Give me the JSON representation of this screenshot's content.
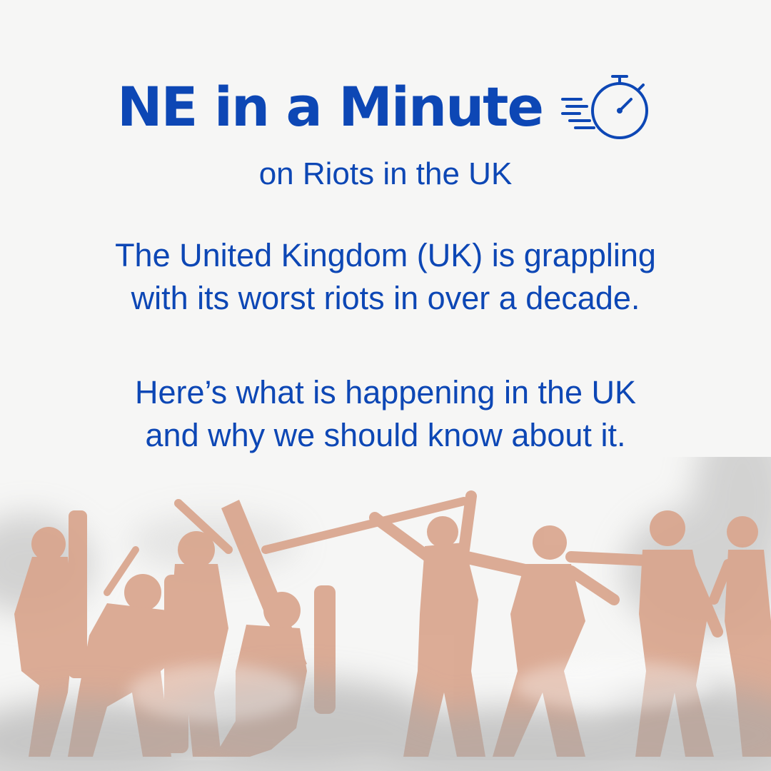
{
  "header": {
    "title": "NE in a Minute",
    "subtitle": "on Riots in the UK",
    "icon": "stopwatch-icon"
  },
  "body": {
    "paragraph_1_line_1": "The United Kingdom (UK) is grappling",
    "paragraph_1_line_2": "with its worst riots in over a decade.",
    "paragraph_2_line_1": "Here’s what is happening in the UK",
    "paragraph_2_line_2": "and why we should know about it."
  },
  "illustration": {
    "subject": "riot-silhouettes",
    "figure_color": "#d9a58d",
    "smoke_color": "#b8b8b8"
  },
  "colors": {
    "accent": "#0d47b5",
    "background": "#f6f6f5"
  }
}
